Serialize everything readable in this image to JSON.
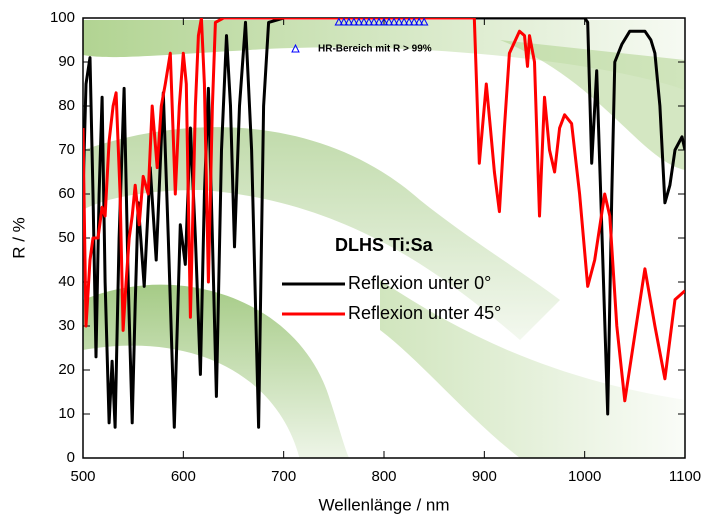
{
  "chart_data": {
    "type": "line",
    "xlabel": "Wellenlänge / nm",
    "ylabel": "R / %",
    "xlim": [
      500,
      1100
    ],
    "xticks": [
      500,
      600,
      700,
      800,
      900,
      1000,
      1100
    ],
    "ylim": [
      0,
      100
    ],
    "yticks": [
      0,
      10,
      20,
      30,
      40,
      50,
      60,
      70,
      80,
      90,
      100
    ],
    "legend_title": "DLHS Ti:Sa",
    "series": [
      {
        "name": "Reflexion unter 0°",
        "color": "#000000",
        "x": [
          500,
          503,
          507,
          510,
          513,
          516,
          519,
          522,
          526,
          529,
          532,
          536,
          541,
          545,
          549,
          552,
          555,
          561,
          567,
          573,
          580,
          585,
          591,
          597,
          602,
          607,
          612,
          617,
          621,
          625,
          629,
          633,
          638,
          643,
          647,
          651,
          656,
          662,
          668,
          675,
          680,
          685,
          700,
          800,
          1000,
          1003,
          1007,
          1012,
          1016,
          1023,
          1027,
          1030,
          1037,
          1045,
          1060,
          1066,
          1070,
          1075,
          1080,
          1085,
          1090,
          1097,
          1100
        ],
        "values": [
          60,
          85,
          91,
          60,
          23,
          60,
          82,
          40,
          8,
          22,
          7,
          50,
          84,
          40,
          8,
          35,
          58,
          39,
          66,
          45,
          83,
          50,
          7,
          53,
          44,
          75,
          50,
          19,
          60,
          84,
          50,
          14,
          70,
          96,
          80,
          48,
          80,
          99,
          70,
          7,
          80,
          99,
          100,
          100,
          100,
          99,
          67,
          88,
          60,
          10,
          60,
          90,
          94,
          97,
          97,
          95,
          92,
          80,
          58,
          62,
          70,
          73,
          70
        ]
      },
      {
        "name": "Reflexion unter 45°",
        "color": "#ff0000",
        "x": [
          500,
          503,
          507,
          510,
          515,
          519,
          522,
          526,
          530,
          533,
          537,
          540,
          543,
          546,
          549,
          552,
          556,
          560,
          565,
          569,
          574,
          578,
          582,
          587,
          592,
          596,
          600,
          603,
          607,
          612,
          615,
          618,
          621,
          625,
          629,
          632,
          640,
          700,
          890,
          895,
          902,
          906,
          910,
          915,
          920,
          925,
          935,
          940,
          943,
          945,
          950,
          955,
          960,
          965,
          970,
          975,
          980,
          987,
          995,
          1003,
          1010,
          1020,
          1025,
          1032,
          1040,
          1050,
          1060,
          1070,
          1080,
          1090,
          1100
        ],
        "values": [
          75,
          30,
          45,
          50,
          50,
          57,
          55,
          72,
          80,
          83,
          60,
          29,
          40,
          50,
          55,
          62,
          53,
          64,
          60,
          80,
          66,
          80,
          85,
          92,
          60,
          80,
          92,
          85,
          32,
          80,
          96,
          100,
          85,
          40,
          80,
          99,
          100,
          100,
          100,
          67,
          85,
          75,
          65,
          56,
          75,
          92,
          97,
          96,
          89,
          96,
          90,
          55,
          82,
          70,
          65,
          75,
          78,
          76,
          60,
          39,
          45,
          60,
          55,
          30,
          13,
          28,
          43,
          30,
          18,
          36,
          38
        ]
      },
      {
        "name": "HR-Bereich mit R > 99%",
        "color": "#0000ff",
        "type": "scatter",
        "marker": "triangle",
        "x": [
          755,
          760,
          765,
          770,
          775,
          780,
          785,
          790,
          795,
          800,
          805,
          810,
          815,
          820,
          825,
          830,
          835,
          840
        ],
        "values": [
          100,
          100,
          100,
          100,
          100,
          100,
          100,
          100,
          100,
          100,
          100,
          100,
          100,
          100,
          100,
          100,
          100,
          100
        ]
      }
    ]
  }
}
